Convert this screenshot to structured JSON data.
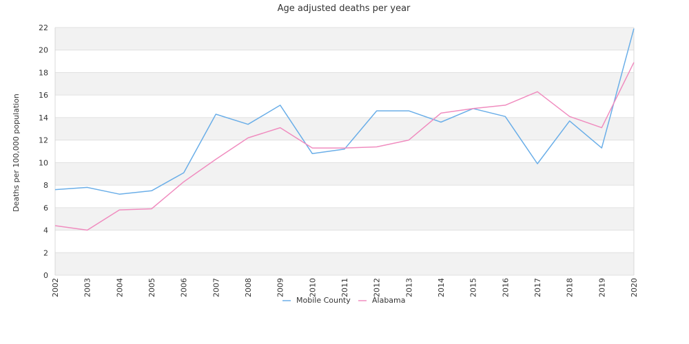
{
  "chart_data": {
    "type": "line",
    "title": "Age adjusted deaths per year",
    "xlabel": "",
    "ylabel": "Deaths per 100,000 population",
    "categories": [
      "2002",
      "2003",
      "2004",
      "2005",
      "2006",
      "2007",
      "2008",
      "2009",
      "2010",
      "2011",
      "2012",
      "2013",
      "2014",
      "2015",
      "2016",
      "2017",
      "2018",
      "2019",
      "2020"
    ],
    "ylim": [
      0,
      22
    ],
    "yticks": [
      0,
      2,
      4,
      6,
      8,
      10,
      12,
      14,
      16,
      18,
      20,
      22
    ],
    "grid": true,
    "legend": "bottom-center",
    "series": [
      {
        "name": "Mobile County",
        "color": "#6aaee8",
        "values": [
          7.6,
          7.8,
          7.2,
          7.5,
          9.1,
          14.3,
          13.4,
          15.1,
          10.8,
          11.2,
          14.6,
          14.6,
          13.6,
          14.8,
          14.1,
          9.9,
          13.7,
          11.3,
          21.9
        ]
      },
      {
        "name": "Alabama",
        "color": "#f08cbf",
        "values": [
          4.4,
          4.0,
          5.8,
          5.9,
          8.3,
          10.3,
          12.2,
          13.1,
          11.3,
          11.3,
          11.4,
          12.0,
          14.4,
          14.8,
          15.1,
          16.3,
          14.1,
          13.1,
          18.9
        ]
      }
    ]
  }
}
